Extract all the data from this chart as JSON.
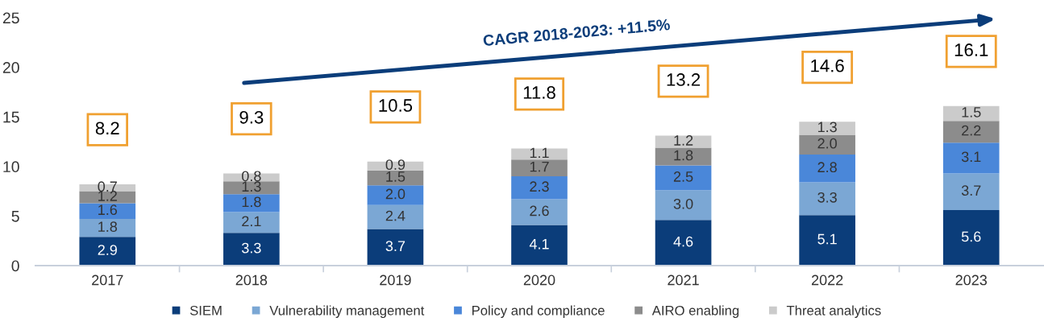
{
  "chart_data": {
    "type": "bar",
    "stacked": true,
    "categories": [
      "2017",
      "2018",
      "2019",
      "2020",
      "2021",
      "2022",
      "2023"
    ],
    "series": [
      {
        "name": "SIEM",
        "color": "#0b3d7a",
        "values": [
          2.9,
          3.3,
          3.7,
          4.1,
          4.6,
          5.1,
          5.6
        ],
        "value_labels": [
          "2.9",
          "3.3",
          "3.7",
          "4.1",
          "4.6",
          "5.1",
          "5.6"
        ]
      },
      {
        "name": "Vulnerability management",
        "color": "#7ba7d4",
        "values": [
          1.8,
          2.1,
          2.4,
          2.6,
          3.0,
          3.3,
          3.7
        ],
        "value_labels": [
          "1.8",
          "2.1",
          "2.4",
          "2.6",
          "3.0",
          "3.3",
          "3.7"
        ]
      },
      {
        "name": "Policy and compliance",
        "color": "#4a87d9",
        "values": [
          1.6,
          1.8,
          2.0,
          2.3,
          2.5,
          2.8,
          3.1
        ],
        "value_labels": [
          "1.6",
          "1.8",
          "2.0",
          "2.3",
          "2.5",
          "2.8",
          "3.1"
        ]
      },
      {
        "name": "AIRO enabling",
        "color": "#8c8c8c",
        "values": [
          1.2,
          1.3,
          1.5,
          1.7,
          1.8,
          2.0,
          2.2
        ],
        "value_labels": [
          "1.2",
          "1.3",
          "1.5",
          "1.7",
          "1.8",
          "2.0",
          "2.2"
        ]
      },
      {
        "name": "Threat analytics",
        "color": "#cbcbcb",
        "values": [
          0.7,
          0.8,
          0.9,
          1.1,
          1.2,
          1.3,
          1.5
        ],
        "value_labels": [
          "0.7",
          "0.8",
          "0.9",
          "1.1",
          "1.2",
          "1.3",
          "1.5"
        ]
      }
    ],
    "totals": [
      "8.2",
      "9.3",
      "10.5",
      "11.8",
      "13.2",
      "14.6",
      "16.1"
    ],
    "annotations": [
      "CAGR 2018-2023: +11.5%"
    ],
    "ylim": [
      0,
      25
    ],
    "yticks": [
      0,
      5,
      10,
      15,
      20,
      25
    ],
    "legend": "bottom",
    "grid": false
  }
}
